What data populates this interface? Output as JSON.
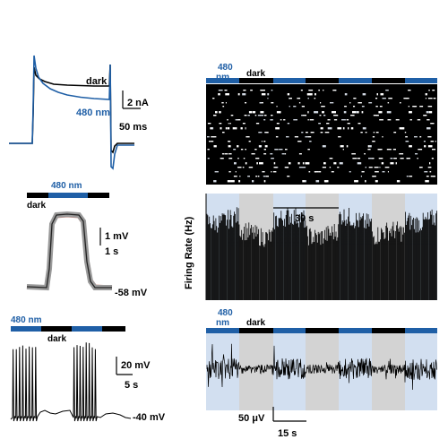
{
  "colors": {
    "blue": "#1f5fa6",
    "light_blue_band": "#d2dff0",
    "gray_band": "#d3d3d3",
    "black": "#000000",
    "trace_gray": "#555555",
    "sem_red": "#c98a80"
  },
  "panel_current": {
    "label_dark": "dark",
    "label_480": "480 nm",
    "scale_y": "2 nA",
    "scale_x": "50 ms"
  },
  "panel_average": {
    "bar_label": "480 nm",
    "dark_label": "dark",
    "scale_y": "1 mV",
    "scale_x": "1 s",
    "baseline": "-58 mV"
  },
  "panel_spikes": {
    "bar_label": "480 nm",
    "dark_label": "dark",
    "scale_y": "20 mV",
    "scale_x": "5 s",
    "baseline": "-40 mV"
  },
  "panel_raster": {
    "label_480_line1": "480",
    "label_480_line2": "nm",
    "dark_label": "dark"
  },
  "panel_rate": {
    "ylabel": "Firing Rate (Hz)",
    "scale_x": "30 s"
  },
  "panel_field": {
    "label_480_line1": "480",
    "label_480_line2": "nm",
    "dark_label": "dark",
    "scale_y": "50 μV",
    "scale_x": "15 s"
  }
}
